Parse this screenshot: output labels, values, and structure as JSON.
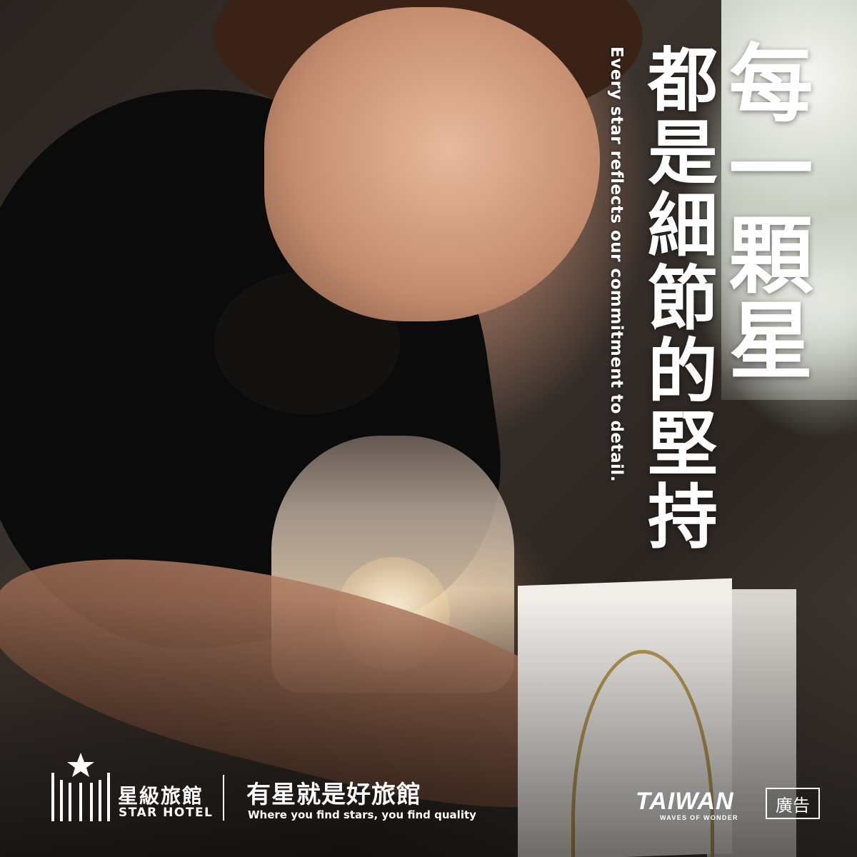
{
  "headline": {
    "line1": "每一顆星",
    "line2": "都是細節的堅持",
    "english": "Every star reflects our commitment to detail."
  },
  "brand": {
    "name_zh": "星級旅館",
    "name_en": "STAR HOTEL",
    "logo_icon": "star-hotel-logo-icon"
  },
  "slogan": {
    "zh": "有星就是好旅館",
    "en": "Where you find stars, you find quality"
  },
  "sponsor": {
    "name": "TAIWAN",
    "tagline": "WAVES OF WONDER"
  },
  "ad_label": "廣告",
  "colors": {
    "text": "#ffffff",
    "uniform": "#0c0b0b",
    "accent_gold": "#b99c58"
  }
}
